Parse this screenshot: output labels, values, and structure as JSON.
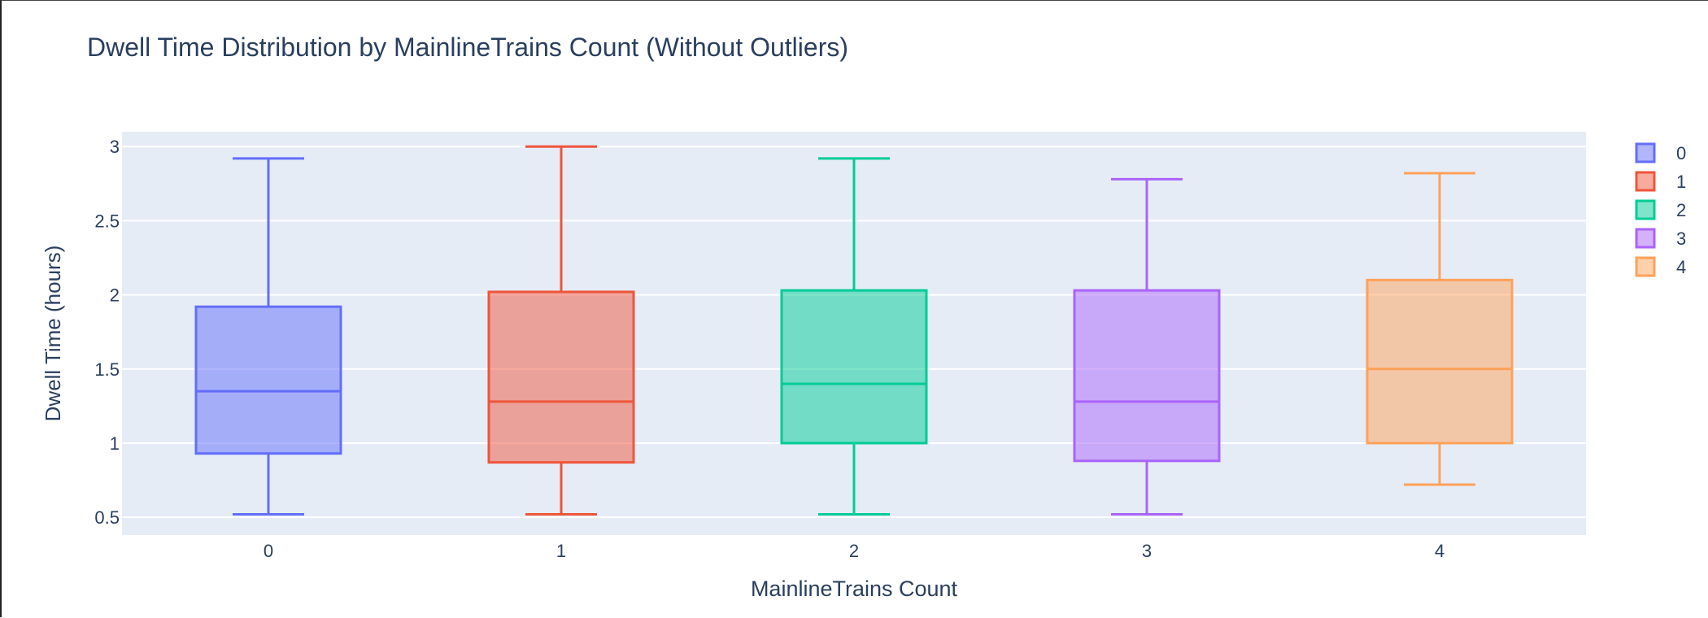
{
  "chart_data": {
    "type": "box",
    "title": "Dwell Time Distribution by MainlineTrains Count (Without Outliers)",
    "xlabel": "MainlineTrains Count",
    "ylabel": "Dwell Time (hours)",
    "categories": [
      "0",
      "1",
      "2",
      "3",
      "4"
    ],
    "yticks": [
      "0.5",
      "1",
      "1.5",
      "2",
      "2.5",
      "3"
    ],
    "ylim": [
      0.38,
      3.1
    ],
    "grid": true,
    "legend_position": "top-right",
    "series": [
      {
        "name": "0",
        "color": "#636efa",
        "min": 0.52,
        "q1": 0.93,
        "median": 1.35,
        "q3": 1.92,
        "max": 2.92
      },
      {
        "name": "1",
        "color": "#ef553b",
        "min": 0.52,
        "q1": 0.87,
        "median": 1.28,
        "q3": 2.02,
        "max": 3.0
      },
      {
        "name": "2",
        "color": "#00cc96",
        "min": 0.52,
        "q1": 1.0,
        "median": 1.4,
        "q3": 2.03,
        "max": 2.92
      },
      {
        "name": "3",
        "color": "#ab63fa",
        "min": 0.52,
        "q1": 0.88,
        "median": 1.28,
        "q3": 2.03,
        "max": 2.78
      },
      {
        "name": "4",
        "color": "#ffa15a",
        "min": 0.72,
        "q1": 1.0,
        "median": 1.5,
        "q3": 2.1,
        "max": 2.82
      }
    ]
  }
}
